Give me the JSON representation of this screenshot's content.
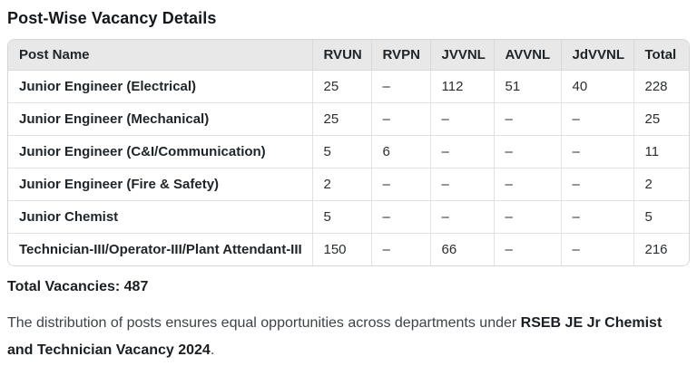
{
  "page": {
    "title": "Post-Wise Vacancy Details",
    "total_line": "Total Vacancies: 487",
    "footer": {
      "text_before": "The distribution of posts ensures equal opportunities across departments under ",
      "bold_text": "RSEB JE Jr Chemist and Technician Vacancy 2024",
      "text_after": "."
    }
  },
  "table": {
    "columns": [
      "Post Name",
      "RVUN",
      "RVPN",
      "JVVNL",
      "AVVNL",
      "JdVVNL",
      "Total"
    ],
    "rows": [
      {
        "post": "Junior Engineer (Electrical)",
        "values": [
          "25",
          "–",
          "112",
          "51",
          "40",
          "228"
        ]
      },
      {
        "post": "Junior Engineer (Mechanical)",
        "values": [
          "25",
          "–",
          "–",
          "–",
          "–",
          "25"
        ]
      },
      {
        "post": "Junior Engineer (C&I/Communication)",
        "values": [
          "5",
          "6",
          "–",
          "–",
          "–",
          "11"
        ]
      },
      {
        "post": "Junior Engineer (Fire & Safety)",
        "values": [
          "2",
          "–",
          "–",
          "–",
          "–",
          "2"
        ]
      },
      {
        "post": "Junior Chemist",
        "values": [
          "5",
          "–",
          "–",
          "–",
          "–",
          "5"
        ]
      },
      {
        "post": "Technician-III/Operator-III/Plant Attendant-III",
        "values": [
          "150",
          "–",
          "66",
          "–",
          "–",
          "216"
        ]
      }
    ]
  },
  "colors": {
    "header_bg": "#e8e8e8",
    "table_border": "#d6d6d6",
    "cell_divider": "#e2e2e2",
    "heading_text": "#15181b",
    "body_text": "#3d4349"
  }
}
